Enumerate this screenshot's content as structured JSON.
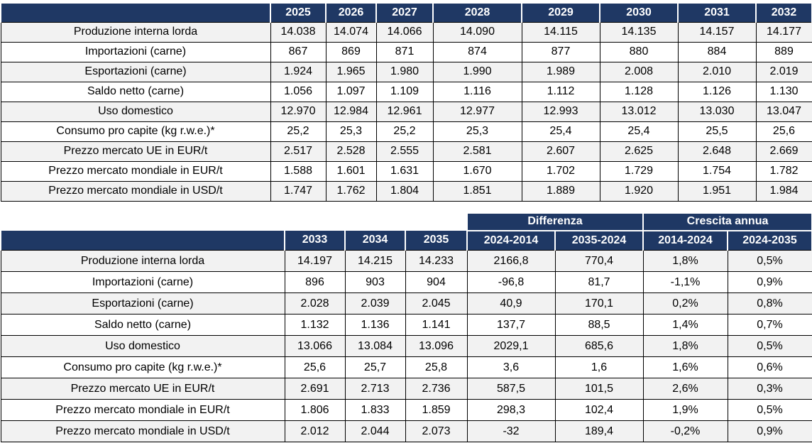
{
  "colors": {
    "header_bg": "#1F3864",
    "header_text": "#FFFFFF",
    "row_odd_bg": "#F2F2F2",
    "row_even_bg": "#FFFFFF",
    "border": "#000000"
  },
  "table_2025_2032": {
    "corner_label": "",
    "year_headers": [
      "2025",
      "2026",
      "2027",
      "2028",
      "2029",
      "2030",
      "2031",
      "2032"
    ],
    "rows": [
      {
        "label": "Produzione interna lorda",
        "values": [
          "14.038",
          "14.074",
          "14.066",
          "14.090",
          "14.115",
          "14.135",
          "14.157",
          "14.177"
        ]
      },
      {
        "label": "Importazioni (carne)",
        "values": [
          "867",
          "869",
          "871",
          "874",
          "877",
          "880",
          "884",
          "889"
        ]
      },
      {
        "label": "Esportazioni (carne)",
        "values": [
          "1.924",
          "1.965",
          "1.980",
          "1.990",
          "1.989",
          "2.008",
          "2.010",
          "2.019"
        ]
      },
      {
        "label": "Saldo netto (carne)",
        "values": [
          "1.056",
          "1.097",
          "1.109",
          "1.116",
          "1.112",
          "1.128",
          "1.126",
          "1.130"
        ]
      },
      {
        "label": "Uso domestico",
        "values": [
          "12.970",
          "12.984",
          "12.961",
          "12.977",
          "12.993",
          "13.012",
          "13.030",
          "13.047"
        ]
      },
      {
        "label": "Consumo pro capite (kg r.w.e.)*",
        "values": [
          "25,2",
          "25,3",
          "25,2",
          "25,3",
          "25,4",
          "25,4",
          "25,5",
          "25,6"
        ]
      },
      {
        "label": "Prezzo mercato UE in EUR/t",
        "values": [
          "2.517",
          "2.528",
          "2.555",
          "2.581",
          "2.607",
          "2.625",
          "2.648",
          "2.669"
        ]
      },
      {
        "label": "Prezzo mercato mondiale in EUR/t",
        "values": [
          "1.588",
          "1.601",
          "1.631",
          "1.670",
          "1.702",
          "1.729",
          "1.754",
          "1.782"
        ]
      },
      {
        "label": "Prezzo mercato mondiale in USD/t",
        "values": [
          "1.747",
          "1.762",
          "1.804",
          "1.851",
          "1.889",
          "1.920",
          "1.951",
          "1.984"
        ]
      }
    ]
  },
  "table_2033_2035": {
    "corner_label": "",
    "group_headers": [
      {
        "label": "Differenza",
        "span": 2
      },
      {
        "label": "Crescita annua",
        "span": 2
      }
    ],
    "column_headers": [
      "2033",
      "2034",
      "2035",
      "2024-2014",
      "2035-2024",
      "2014-2024",
      "2024-2035"
    ],
    "rows": [
      {
        "label": "Produzione interna lorda",
        "values": [
          "14.197",
          "14.215",
          "14.233",
          "2166,8",
          "770,4",
          "1,8%",
          "0,5%"
        ]
      },
      {
        "label": "Importazioni (carne)",
        "values": [
          "896",
          "903",
          "904",
          "-96,8",
          "81,7",
          "-1,1%",
          "0,9%"
        ]
      },
      {
        "label": "Esportazioni (carne)",
        "values": [
          "2.028",
          "2.039",
          "2.045",
          "40,9",
          "170,1",
          "0,2%",
          "0,8%"
        ]
      },
      {
        "label": "Saldo netto (carne)",
        "values": [
          "1.132",
          "1.136",
          "1.141",
          "137,7",
          "88,5",
          "1,4%",
          "0,7%"
        ]
      },
      {
        "label": "Uso domestico",
        "values": [
          "13.066",
          "13.084",
          "13.096",
          "2029,1",
          "685,6",
          "1,8%",
          "0,5%"
        ]
      },
      {
        "label": "Consumo pro capite (kg r.w.e.)*",
        "values": [
          "25,6",
          "25,7",
          "25,8",
          "3,6",
          "1,6",
          "1,6%",
          "0,6%"
        ]
      },
      {
        "label": "Prezzo mercato UE in EUR/t",
        "values": [
          "2.691",
          "2.713",
          "2.736",
          "587,5",
          "101,5",
          "2,6%",
          "0,3%"
        ]
      },
      {
        "label": "Prezzo mercato mondiale in EUR/t",
        "values": [
          "1.806",
          "1.833",
          "1.859",
          "298,3",
          "102,4",
          "1,9%",
          "0,5%"
        ]
      },
      {
        "label": "Prezzo mercato mondiale in USD/t",
        "values": [
          "2.012",
          "2.044",
          "2.073",
          "-32",
          "189,4",
          "-0,2%",
          "0,9%"
        ]
      }
    ]
  }
}
